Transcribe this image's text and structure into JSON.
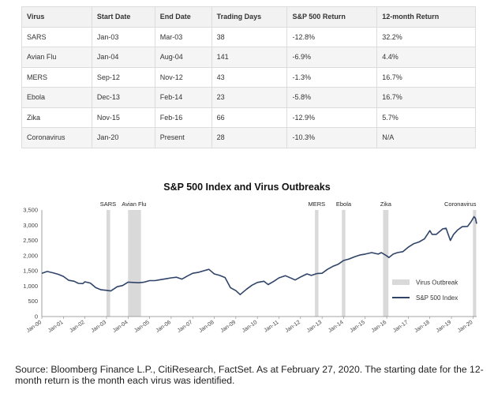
{
  "table": {
    "headers": [
      "Virus",
      "Start Date",
      "End Date",
      "Trading Days",
      "S&P 500 Return",
      "12-month Return"
    ],
    "rows": [
      [
        "SARS",
        "Jan-03",
        "Mar-03",
        "38",
        "-12.8%",
        "32.2%"
      ],
      [
        "Avian Flu",
        "Jan-04",
        "Aug-04",
        "141",
        "-6.9%",
        "4.4%"
      ],
      [
        "MERS",
        "Sep-12",
        "Nov-12",
        "43",
        "-1.3%",
        "16.7%"
      ],
      [
        "Ebola",
        "Dec-13",
        "Feb-14",
        "23",
        "-5.8%",
        "16.7%"
      ],
      [
        "Zika",
        "Nov-15",
        "Feb-16",
        "66",
        "-12.9%",
        "5.7%"
      ],
      [
        "Coronavirus",
        "Jan-20",
        "Present",
        "28",
        "-10.3%",
        "N/A"
      ]
    ]
  },
  "chart_data": {
    "type": "line",
    "title": "S&P 500 Index and Virus Outbreaks",
    "xlabel": "",
    "ylabel": "",
    "xlim": [
      2000.0,
      2020.17
    ],
    "ylim": [
      0,
      3500
    ],
    "y_ticks": [
      0,
      500,
      "1,000",
      "1,500",
      "2,000",
      "2,500",
      "3,000",
      "3,500"
    ],
    "y_tick_values": [
      0,
      500,
      1000,
      1500,
      2000,
      2500,
      3000,
      3500
    ],
    "x_tick_labels": [
      "Jan-00",
      "Jan-01",
      "Jan-02",
      "Jan-03",
      "Jan-04",
      "Jan-05",
      "Jan-06",
      "Jan-07",
      "Jan-08",
      "Jan-09",
      "Jan-10",
      "Jan-11",
      "Jan-12",
      "Jan-13",
      "Jan-14",
      "Jan-15",
      "Jan-16",
      "Jan-17",
      "Jan-18",
      "Jan-19",
      "Jan-20"
    ],
    "x_tick_values": [
      2000,
      2001,
      2002,
      2003,
      2004,
      2005,
      2006,
      2007,
      2008,
      2009,
      2010,
      2011,
      2012,
      2013,
      2014,
      2015,
      2016,
      2017,
      2018,
      2019,
      2020
    ],
    "outbreaks": [
      {
        "name": "SARS",
        "start": 2003.0,
        "end": 2003.17
      },
      {
        "name": "Avian Flu",
        "start": 2004.0,
        "end": 2004.6
      },
      {
        "name": "MERS",
        "start": 2012.67,
        "end": 2012.83
      },
      {
        "name": "Ebola",
        "start": 2013.92,
        "end": 2014.08
      },
      {
        "name": "Zika",
        "start": 2015.83,
        "end": 2016.08
      },
      {
        "name": "Coronavirus",
        "start": 2020.0,
        "end": 2020.15
      }
    ],
    "series": [
      {
        "name": "S&P 500 Index",
        "color": "#2f4468",
        "x": [
          2000.0,
          2000.25,
          2000.5,
          2000.75,
          2001.0,
          2001.25,
          2001.5,
          2001.7,
          2001.9,
          2002.0,
          2002.25,
          2002.5,
          2002.75,
          2003.0,
          2003.2,
          2003.5,
          2003.75,
          2004.0,
          2004.25,
          2004.5,
          2004.75,
          2005.0,
          2005.25,
          2005.5,
          2005.75,
          2006.0,
          2006.25,
          2006.5,
          2006.75,
          2007.0,
          2007.25,
          2007.5,
          2007.75,
          2008.0,
          2008.25,
          2008.5,
          2008.75,
          2009.0,
          2009.2,
          2009.5,
          2009.75,
          2010.0,
          2010.3,
          2010.5,
          2010.75,
          2011.0,
          2011.3,
          2011.6,
          2011.75,
          2012.0,
          2012.3,
          2012.5,
          2012.75,
          2013.0,
          2013.25,
          2013.5,
          2013.75,
          2014.0,
          2014.25,
          2014.5,
          2014.75,
          2015.0,
          2015.3,
          2015.6,
          2015.75,
          2016.0,
          2016.1,
          2016.3,
          2016.5,
          2016.75,
          2017.0,
          2017.25,
          2017.5,
          2017.75,
          2018.0,
          2018.1,
          2018.3,
          2018.6,
          2018.75,
          2018.95,
          2019.1,
          2019.3,
          2019.5,
          2019.75,
          2019.9,
          2020.05,
          2020.12,
          2020.17
        ],
        "values": [
          1420,
          1480,
          1440,
          1390,
          1320,
          1190,
          1160,
          1090,
          1080,
          1140,
          1100,
          950,
          880,
          860,
          840,
          980,
          1020,
          1130,
          1120,
          1110,
          1130,
          1180,
          1180,
          1210,
          1240,
          1270,
          1290,
          1230,
          1330,
          1420,
          1450,
          1500,
          1550,
          1400,
          1350,
          1280,
          950,
          850,
          720,
          900,
          1030,
          1120,
          1160,
          1050,
          1150,
          1270,
          1340,
          1250,
          1200,
          1300,
          1400,
          1350,
          1410,
          1420,
          1550,
          1650,
          1720,
          1840,
          1890,
          1960,
          2020,
          2050,
          2100,
          2050,
          2100,
          1990,
          1940,
          2050,
          2100,
          2130,
          2280,
          2390,
          2450,
          2550,
          2820,
          2700,
          2700,
          2880,
          2900,
          2500,
          2700,
          2850,
          2950,
          2960,
          3100,
          3280,
          3220,
          3050
        ]
      }
    ],
    "legend": [
      "Virus Outbreak",
      "S&P 500 Index"
    ],
    "legend_position": "right",
    "grid": false
  },
  "source_note": "Source: Bloomberg Finance L.P., CitiResearch, FactSet. As at February 27, 2020. The starting date for the 12-month return is the month each virus was identified.",
  "colors": {
    "band": "#d9d9d9",
    "line": "#2f4468",
    "axis": "#999999",
    "text": "#333333"
  }
}
